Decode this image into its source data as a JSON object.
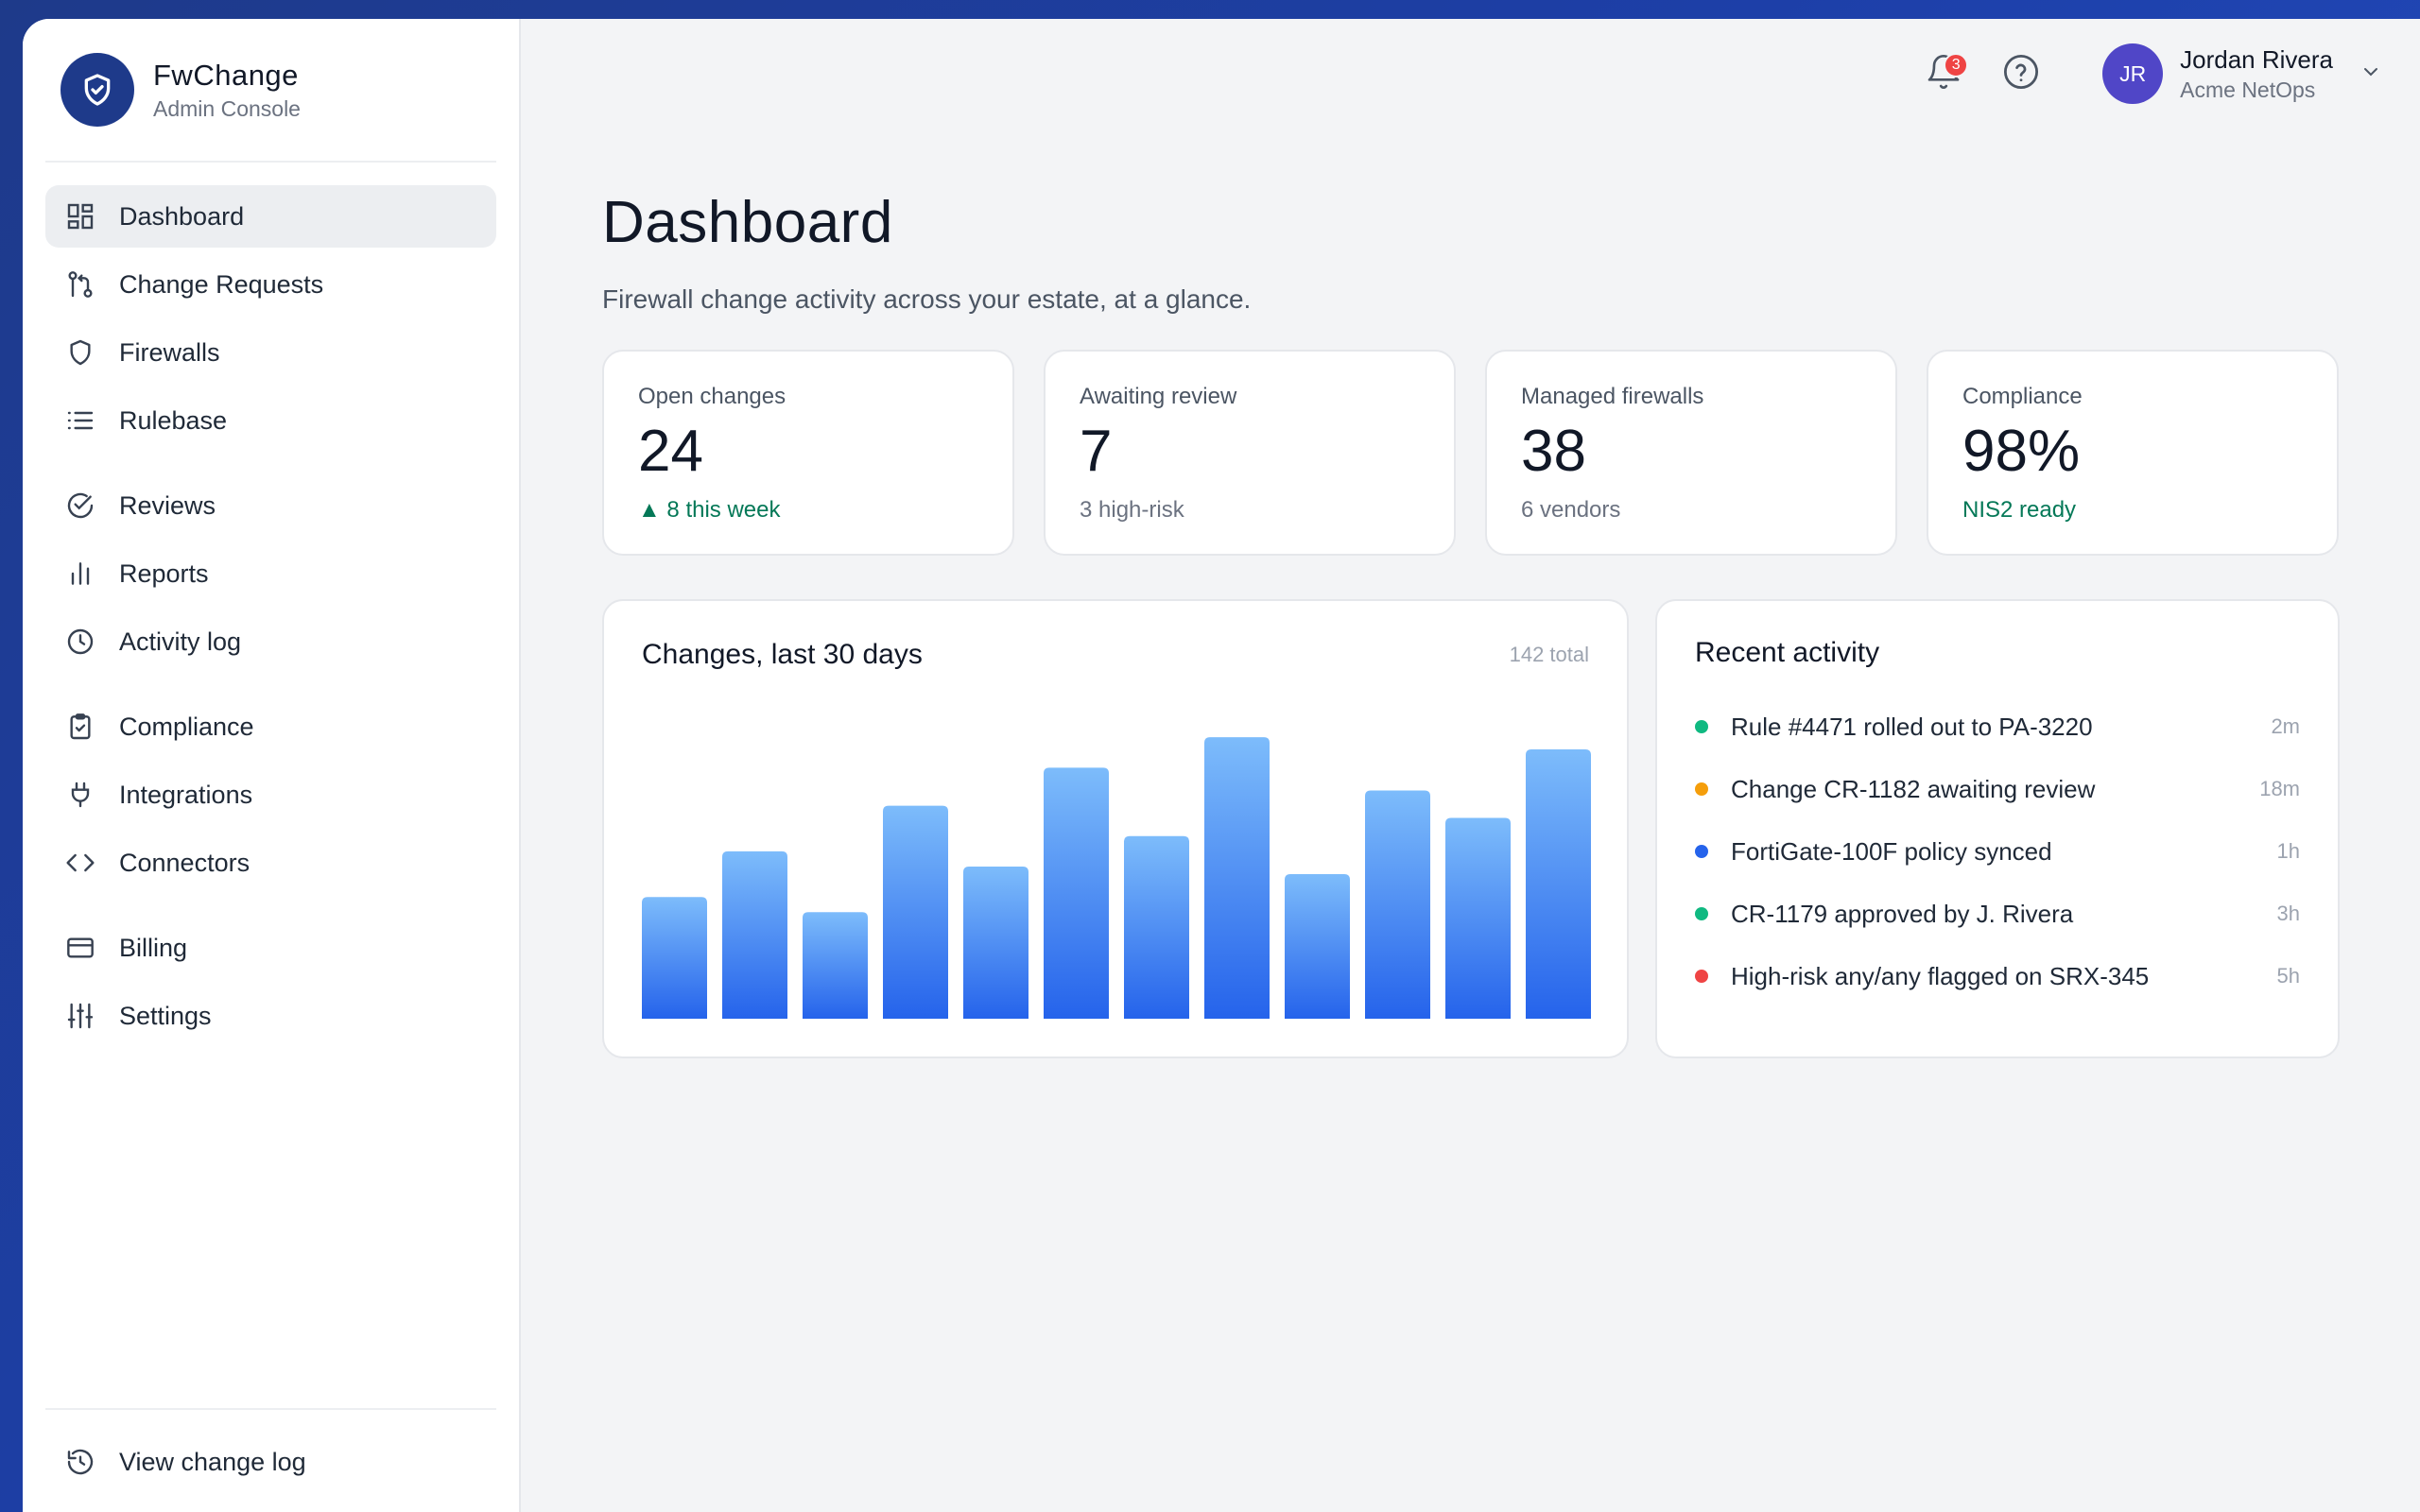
{
  "brand": {
    "name": "FwChange",
    "subtitle": "Admin Console"
  },
  "nav": {
    "groups": [
      [
        {
          "label": "Dashboard",
          "icon": "grid-icon",
          "active": true
        },
        {
          "label": "Change Requests",
          "icon": "git-pull-request-icon"
        },
        {
          "label": "Firewalls",
          "icon": "shield-icon"
        },
        {
          "label": "Rulebase",
          "icon": "list-icon"
        }
      ],
      [
        {
          "label": "Reviews",
          "icon": "check-circle-icon"
        },
        {
          "label": "Reports",
          "icon": "bar-chart-icon"
        },
        {
          "label": "Activity log",
          "icon": "clock-icon"
        }
      ],
      [
        {
          "label": "Compliance",
          "icon": "clipboard-check-icon"
        },
        {
          "label": "Integrations",
          "icon": "plug-icon"
        },
        {
          "label": "Connectors",
          "icon": "code-icon"
        }
      ],
      [
        {
          "label": "Billing",
          "icon": "credit-card-icon"
        },
        {
          "label": "Settings",
          "icon": "sliders-icon"
        }
      ]
    ],
    "footer": {
      "label": "View change log",
      "icon": "history-icon"
    }
  },
  "topbar": {
    "notifications_count": "3",
    "user": {
      "initials": "JR",
      "name": "Jordan Rivera",
      "org": "Acme NetOps"
    }
  },
  "page": {
    "title": "Dashboard",
    "subtitle": "Firewall change activity across your estate, at a glance."
  },
  "stats": [
    {
      "label": "Open changes",
      "value": "24",
      "note": "▲ 8 this week",
      "tone": "good"
    },
    {
      "label": "Awaiting review",
      "value": "7",
      "note": "3 high-risk",
      "tone": "muted"
    },
    {
      "label": "Managed firewalls",
      "value": "38",
      "note": "6 vendors",
      "tone": "muted"
    },
    {
      "label": "Compliance",
      "value": "98%",
      "note": "NIS2 ready",
      "tone": "good"
    }
  ],
  "chart_card": {
    "title": "Changes, last 30 days",
    "total": "142 total"
  },
  "chart_data": {
    "type": "bar",
    "title": "Changes, last 30 days",
    "values": [
      8,
      11,
      7,
      14,
      10,
      16.5,
      12,
      18.5,
      9.5,
      15,
      13.2,
      17.7
    ],
    "ylim": [
      0,
      20
    ],
    "grid": false,
    "colors": {
      "top": "#7dbcfb",
      "bottom": "#2563eb"
    }
  },
  "activity": {
    "title": "Recent activity",
    "items": [
      {
        "text": "Rule #4471 rolled out to PA-3220",
        "time": "2m",
        "color": "#10b981"
      },
      {
        "text": "Change CR-1182 awaiting review",
        "time": "18m",
        "color": "#f59e0b"
      },
      {
        "text": "FortiGate-100F policy synced",
        "time": "1h",
        "color": "#2563eb"
      },
      {
        "text": "CR-1179 approved by J. Rivera",
        "time": "3h",
        "color": "#10b981"
      },
      {
        "text": "High-risk any/any flagged on SRX-345",
        "time": "5h",
        "color": "#ef4444"
      }
    ]
  }
}
